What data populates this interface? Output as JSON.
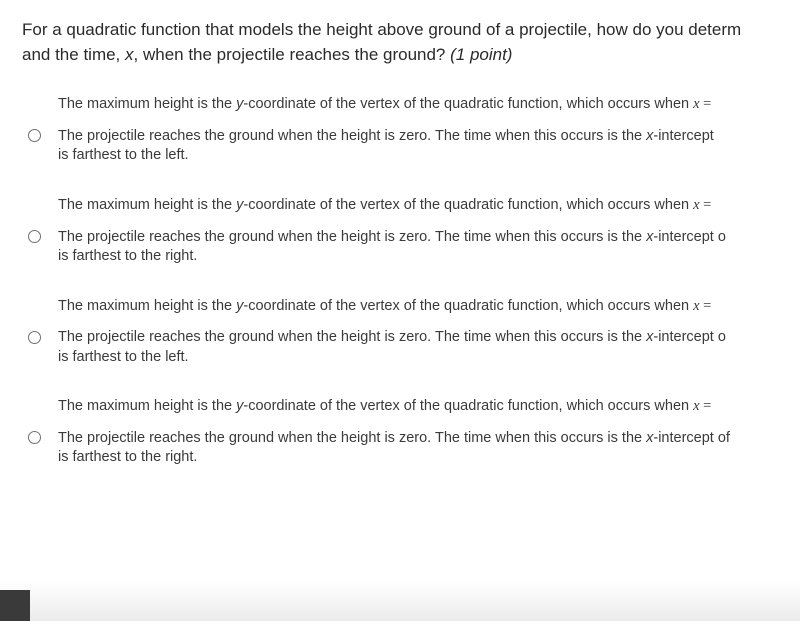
{
  "question": {
    "stem_line1": "For a quadratic function that models the height above ground of a projectile, how do you determ",
    "stem_line2_prefix": "and the time, ",
    "stem_line2_var": "x",
    "stem_line2_suffix": ", when the projectile reaches the ground?  ",
    "points": "(1 point)"
  },
  "options": [
    {
      "line1_a": "The maximum height is the ",
      "line1_yc": "y",
      "line1_b": "-coordinate of the vertex of the quadratic function, which occurs when ",
      "line1_x": "x",
      "line1_eq": " =",
      "line2_a": "The projectile reaches the ground when the height is zero. The time when this occurs is the ",
      "line2_xi": "x",
      "line2_b": "-intercept",
      "line3": "is farthest to the left."
    },
    {
      "line1_a": "The maximum height is the ",
      "line1_yc": "y",
      "line1_b": "-coordinate of the vertex of the quadratic function, which occurs when ",
      "line1_x": "x",
      "line1_eq": " =",
      "line2_a": "The projectile reaches the ground when the height is zero. The time when this occurs is the ",
      "line2_xi": "x",
      "line2_b": "-intercept o",
      "line3": "is farthest to the right."
    },
    {
      "line1_a": "The maximum height is the ",
      "line1_yc": "y",
      "line1_b": "-coordinate of the vertex of the quadratic function, which occurs when ",
      "line1_x": "x",
      "line1_eq": " =",
      "line2_a": "The projectile reaches the ground when the height is zero. The time when this occurs is the ",
      "line2_xi": "x",
      "line2_b": "-intercept o",
      "line3": "is farthest to the left."
    },
    {
      "line1_a": "The maximum height is the ",
      "line1_yc": "y",
      "line1_b": "-coordinate of the vertex of the quadratic function, which occurs when ",
      "line1_x": "x",
      "line1_eq": " =",
      "line2_a": "The projectile reaches the ground when the height is zero. The time when this occurs is the ",
      "line2_xi": "x",
      "line2_b": "-intercept of",
      "line3": "is farthest to the right."
    }
  ],
  "colors": {
    "text": "#2a2a2a",
    "option_text": "#3a3a3a",
    "radio_border": "#707070",
    "background": "#ffffff"
  }
}
